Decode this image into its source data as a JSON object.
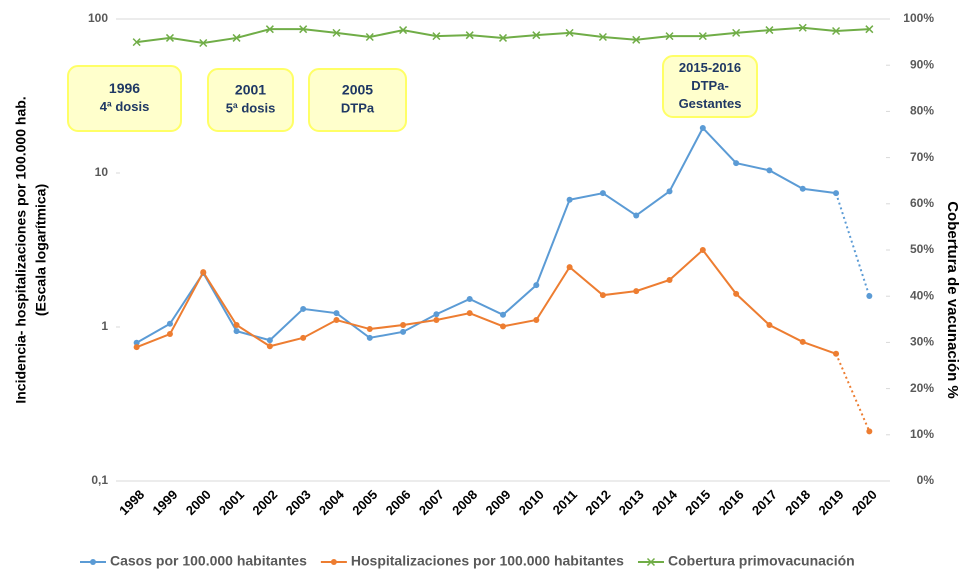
{
  "chart_data": {
    "type": "line",
    "categories": [
      "1998",
      "1999",
      "2000",
      "2001",
      "2002",
      "2003",
      "2004",
      "2005",
      "2006",
      "2007",
      "2008",
      "2009",
      "2010",
      "2011",
      "2012",
      "2013",
      "2014",
      "2015",
      "2016",
      "2017",
      "2018",
      "2019",
      "2020"
    ],
    "series": [
      {
        "name": "Casos por 100.000 habitantes",
        "color": "#5b9bd5",
        "marker": "circle",
        "dashed_last": true,
        "values": [
          0.79,
          1.05,
          2.24,
          0.94,
          0.82,
          1.31,
          1.23,
          0.85,
          0.93,
          1.21,
          1.52,
          1.2,
          1.87,
          6.7,
          7.4,
          5.3,
          7.6,
          19.6,
          11.6,
          10.4,
          7.9,
          7.4,
          1.59
        ]
      },
      {
        "name": "Hospitalizaciones por 100.000 habitantes",
        "color": "#ed7d31",
        "marker": "circle",
        "dashed_last": true,
        "values": [
          0.74,
          0.9,
          2.27,
          1.03,
          0.75,
          0.85,
          1.11,
          0.97,
          1.03,
          1.11,
          1.23,
          1.01,
          1.11,
          2.45,
          1.61,
          1.71,
          2.02,
          3.16,
          1.64,
          1.03,
          0.8,
          0.67,
          0.21
        ]
      },
      {
        "name": "Cobertura primovacunación",
        "color": "#70ad47",
        "marker": "x",
        "axis": "y2",
        "values": [
          95.0,
          95.9,
          94.8,
          95.9,
          97.8,
          97.8,
          97.0,
          96.1,
          97.6,
          96.3,
          96.5,
          95.9,
          96.5,
          97.0,
          96.1,
          95.5,
          96.3,
          96.3,
          97.0,
          97.6,
          98.1,
          97.4,
          97.8
        ]
      }
    ],
    "ylabel": [
      "Incidencia- hospitalizaciones  por 100.000 hab.",
      "(Escala logarítmica)"
    ],
    "y2label": "Cobertura de vacunación %",
    "ylog": true,
    "ylim": [
      0.1,
      100
    ],
    "yticks": [
      {
        "value": 0.1,
        "label": "0,1"
      },
      1,
      10,
      100
    ],
    "y2lim": [
      0,
      100
    ],
    "y2ticks": [
      {
        "value": 0,
        "label": "0%"
      },
      {
        "value": 10,
        "label": "10%"
      },
      {
        "value": 20,
        "label": "20%"
      },
      {
        "value": 30,
        "label": "30%"
      },
      {
        "value": 40,
        "label": "40%"
      },
      {
        "value": 50,
        "label": "50%"
      },
      {
        "value": 60,
        "label": "60%"
      },
      {
        "value": 70,
        "label": "70%"
      },
      {
        "value": 80,
        "label": "80%"
      },
      {
        "value": 90,
        "label": "90%"
      },
      {
        "value": 100,
        "label": "100%"
      }
    ],
    "annotations": [
      [
        "1996",
        "4ª dosis"
      ],
      [
        "2001",
        "5ª dosis"
      ],
      [
        "2005",
        "DTPa"
      ],
      [
        "2015-2016",
        "DTPa-",
        "Gestantes"
      ]
    ],
    "legend": "bottom"
  }
}
